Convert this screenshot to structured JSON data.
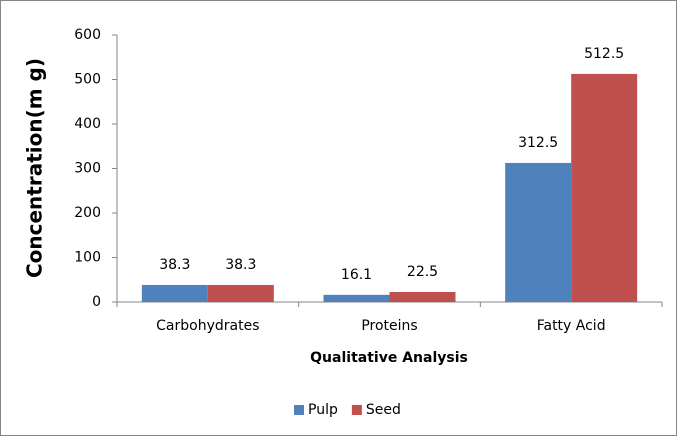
{
  "chart_data": {
    "type": "bar",
    "categories": [
      "Carbohydrates",
      "Proteins",
      "Fatty Acid"
    ],
    "series": [
      {
        "name": "Pulp",
        "color": "#4f81bd",
        "values": [
          38.3,
          16.1,
          312.5
        ]
      },
      {
        "name": "Seed",
        "color": "#c0504d",
        "values": [
          38.3,
          22.5,
          512.5
        ]
      }
    ],
    "xlabel": "Qualitative Analysis",
    "ylabel": "Concentration(m g)",
    "ylim": [
      0,
      600
    ],
    "yticks": [
      0,
      100,
      200,
      300,
      400,
      500,
      600
    ],
    "grid": false,
    "legend": "bottom"
  }
}
